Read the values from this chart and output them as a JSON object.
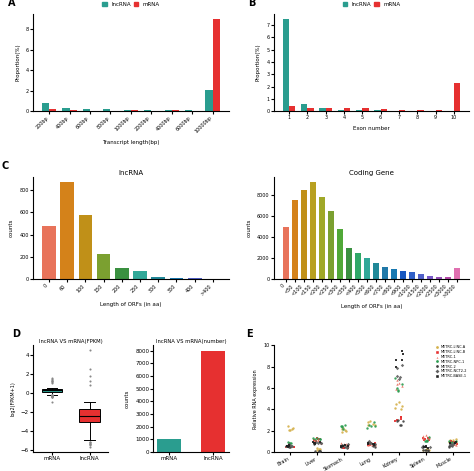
{
  "panel_A": {
    "xlabel": "Transcript length(bp)",
    "ylabel": "Proportion(%)",
    "categories": [
      "200bp",
      "400bp",
      "600bp",
      "800bp",
      "1000bp",
      "2000bp",
      "4000bp",
      "6000bp",
      "10000bp"
    ],
    "lncrna": [
      0.75,
      0.35,
      0.2,
      0.18,
      0.15,
      0.14,
      0.12,
      0.11,
      2.1
    ],
    "mrna": [
      0.18,
      0.08,
      0.05,
      0.04,
      0.07,
      0.04,
      0.08,
      0.06,
      9.0
    ]
  },
  "panel_B": {
    "xlabel": "Exon number",
    "ylabel": "Proportion(%)",
    "categories": [
      "1",
      "2",
      "3",
      "4",
      "5",
      "6",
      "7",
      "8",
      "9",
      "10"
    ],
    "lncrna": [
      7.5,
      0.55,
      0.22,
      0.12,
      0.08,
      0.06,
      0.04,
      0.04,
      0.04,
      0.04
    ],
    "mrna": [
      0.45,
      0.28,
      0.22,
      0.28,
      0.22,
      0.18,
      0.12,
      0.12,
      0.08,
      2.3
    ]
  },
  "panel_C_lncrna": {
    "title": "lncRNA",
    "xlabel": "Length of ORFs (in aa)",
    "ylabel": "counts",
    "categories": [
      "0",
      "60",
      "100",
      "150",
      "200",
      "250",
      "300",
      "350",
      "400",
      ">400"
    ],
    "values": [
      480,
      870,
      580,
      230,
      100,
      70,
      22,
      12,
      8,
      5
    ],
    "colors": [
      "#E8735A",
      "#D4821A",
      "#C09018",
      "#7BA030",
      "#3A9040",
      "#30A898",
      "#208898",
      "#1878B0",
      "#5060C8",
      "#E070B0"
    ]
  },
  "panel_C_coding": {
    "title": "Coding Gene",
    "xlabel": "Length of ORFs (in aa)",
    "ylabel": "counts",
    "categories": [
      "0",
      "<50",
      "<100",
      "<150",
      "<200",
      "<250",
      "<300",
      "<350",
      "<400",
      "<500",
      "<600",
      "<700",
      "<800",
      "<900",
      "<1000",
      "<1500",
      "<2000",
      "<2500",
      "<3000",
      ">3000"
    ],
    "values": [
      5000,
      7500,
      8500,
      9200,
      7800,
      6500,
      4800,
      3000,
      2500,
      2000,
      1500,
      1200,
      1000,
      800,
      700,
      500,
      350,
      250,
      180,
      1100
    ],
    "colors": [
      "#E8735A",
      "#D4821A",
      "#C09018",
      "#B8A020",
      "#A0A828",
      "#7BA030",
      "#50A838",
      "#3A9040",
      "#30A868",
      "#30A898",
      "#208898",
      "#2078A8",
      "#1878B0",
      "#1858C0",
      "#3060C8",
      "#5060C8",
      "#7858C8",
      "#9850B8",
      "#B848A8",
      "#E070B0"
    ]
  },
  "panel_D_box": {
    "title": "lncRNA VS mRNA(FPKM)",
    "ylabel": "log2(FPKM+1)",
    "mrna_median": 0.3,
    "mrna_q1": 0.1,
    "mrna_q3": 0.5,
    "mrna_whislo": -0.5,
    "mrna_whishi": 0.8,
    "mrna_fliers": [
      1.0,
      1.1,
      1.2,
      1.3,
      1.4,
      1.5,
      1.6,
      -1.0
    ],
    "lncrna_median": -2.2,
    "lncrna_q1": -3.2,
    "lncrna_q3": -1.0,
    "lncrna_whislo": -5.8,
    "lncrna_whishi": 0.1,
    "lncrna_fliers": [
      0.8,
      1.2,
      1.8,
      2.5,
      4.5
    ]
  },
  "panel_D_bar": {
    "title": "lncRNA VS mRNA(number)",
    "ylabel": "counts",
    "categories": [
      "mRNA",
      "lncRNA"
    ],
    "values": [
      1000,
      8000
    ]
  },
  "panel_E": {
    "ylabel": "Relative RNA expression",
    "tissues": [
      "Brain",
      "Liver",
      "Stomach",
      "Lung",
      "Kidney",
      "Spleen",
      "Muscle"
    ],
    "genes": [
      "METRC-LINC-A",
      "METRC-LINC-B",
      "METRC-1",
      "METRC-NPC-1",
      "METRC-2",
      "METRC-NCT2-2",
      "METRC-BASE-1"
    ],
    "gene_colors": [
      "#D4B04A",
      "#E63030",
      "#E87060",
      "#2A9D50",
      "#404040",
      "#606060",
      "#202020"
    ],
    "gene_markers": [
      "o",
      "s",
      "^",
      "o",
      "o",
      "D",
      "s"
    ],
    "tissue_data": {
      "Brain": [
        2.2,
        0.5,
        0.7,
        0.8,
        0.5,
        0.6,
        0.6
      ],
      "Liver": [
        0.3,
        1.2,
        1.1,
        1.3,
        0.15,
        0.9,
        0.8
      ],
      "Stomach": [
        2.2,
        0.5,
        0.7,
        2.3,
        0.5,
        0.6,
        0.6
      ],
      "Lung": [
        2.5,
        0.8,
        0.7,
        2.5,
        0.7,
        0.9,
        0.8
      ],
      "Kidney": [
        4.3,
        3.1,
        6.2,
        6.5,
        2.8,
        7.1,
        8.7
      ],
      "Spleen": [
        0.3,
        1.3,
        1.5,
        1.2,
        0.2,
        0.5,
        0.5
      ],
      "Muscle": [
        1.1,
        1.0,
        0.8,
        1.0,
        0.6,
        0.8,
        0.9
      ]
    }
  },
  "teal_color": "#2A9D8F",
  "red_color": "#E63030",
  "bg_color": "#FFFFFF"
}
